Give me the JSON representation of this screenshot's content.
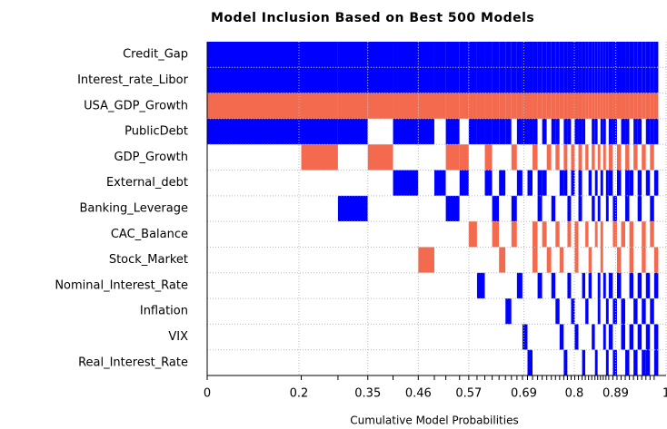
{
  "chart_data": {
    "type": "model-inclusion",
    "title": "Model Inclusion Based on Best  500  Models",
    "x_label": "Cumulative Model Probabilities",
    "categories": [
      "Credit_Gap",
      "Interest_rate_Libor",
      "USA_GDP_Growth",
      "PublicDebt",
      "GDP_Growth",
      "External_debt",
      "Banking_Leverage",
      "CAC_Balance",
      "Stock_Market",
      "Nominal_Interest_Rate",
      "Inflation",
      "VIX",
      "Real_Interest_Rate"
    ],
    "xlim": [
      0,
      1
    ],
    "xticks": [
      0,
      0.2,
      0.35,
      0.46,
      0.57,
      0.69,
      0.8,
      0.89,
      1
    ],
    "grid": true,
    "colors": {
      "1": "#0000ff",
      "-1": "#f46a4e",
      "0": "#ffffff"
    },
    "models": [
      {
        "prob": 0.205,
        "signs": [
          1,
          1,
          -1,
          1,
          0,
          0,
          0,
          0,
          0,
          0,
          0,
          0,
          0
        ]
      },
      {
        "prob": 0.08,
        "signs": [
          1,
          1,
          -1,
          1,
          -1,
          0,
          0,
          0,
          0,
          0,
          0,
          0,
          0
        ]
      },
      {
        "prob": 0.065,
        "signs": [
          1,
          1,
          -1,
          1,
          0,
          0,
          1,
          0,
          0,
          0,
          0,
          0,
          0
        ]
      },
      {
        "prob": 0.055,
        "signs": [
          1,
          1,
          -1,
          0,
          -1,
          0,
          0,
          0,
          0,
          0,
          0,
          0,
          0
        ]
      },
      {
        "prob": 0.055,
        "signs": [
          1,
          1,
          -1,
          1,
          0,
          1,
          0,
          0,
          0,
          0,
          0,
          0,
          0
        ]
      },
      {
        "prob": 0.035,
        "signs": [
          1,
          1,
          -1,
          1,
          0,
          0,
          0,
          0,
          -1,
          0,
          0,
          0,
          0
        ]
      },
      {
        "prob": 0.025,
        "signs": [
          1,
          1,
          -1,
          0,
          0,
          1,
          0,
          0,
          0,
          0,
          0,
          0,
          0
        ]
      },
      {
        "prob": 0.03,
        "signs": [
          1,
          1,
          -1,
          1,
          -1,
          0,
          1,
          0,
          0,
          0,
          0,
          0,
          0
        ]
      },
      {
        "prob": 0.02,
        "signs": [
          1,
          1,
          -1,
          0,
          -1,
          1,
          0,
          0,
          0,
          0,
          0,
          0,
          0
        ]
      },
      {
        "prob": 0.018,
        "signs": [
          1,
          1,
          -1,
          1,
          0,
          0,
          0,
          -1,
          0,
          0,
          0,
          0,
          0
        ]
      },
      {
        "prob": 0.017,
        "signs": [
          1,
          1,
          -1,
          1,
          0,
          0,
          0,
          0,
          0,
          1,
          0,
          0,
          0
        ]
      },
      {
        "prob": 0.016,
        "signs": [
          1,
          1,
          -1,
          1,
          -1,
          1,
          0,
          0,
          0,
          0,
          0,
          0,
          0
        ]
      },
      {
        "prob": 0.015,
        "signs": [
          1,
          1,
          -1,
          1,
          0,
          0,
          1,
          -1,
          0,
          0,
          0,
          0,
          0
        ]
      },
      {
        "prob": 0.014,
        "signs": [
          1,
          1,
          -1,
          1,
          0,
          1,
          0,
          0,
          -1,
          0,
          0,
          0,
          0
        ]
      },
      {
        "prob": 0.013,
        "signs": [
          1,
          1,
          -1,
          1,
          0,
          0,
          0,
          0,
          0,
          0,
          1,
          0,
          0
        ]
      },
      {
        "prob": 0.012,
        "signs": [
          1,
          1,
          -1,
          0,
          -1,
          0,
          1,
          -1,
          0,
          0,
          0,
          0,
          0
        ]
      },
      {
        "prob": 0.012,
        "signs": [
          1,
          1,
          -1,
          1,
          0,
          1,
          0,
          0,
          0,
          1,
          0,
          0,
          0
        ]
      },
      {
        "prob": 0.011,
        "signs": [
          1,
          1,
          -1,
          1,
          0,
          0,
          0,
          0,
          0,
          0,
          0,
          1,
          0
        ]
      },
      {
        "prob": 0.011,
        "signs": [
          1,
          1,
          -1,
          1,
          0,
          1,
          0,
          0,
          0,
          0,
          0,
          0,
          1
        ]
      },
      {
        "prob": 0.011,
        "signs": [
          1,
          1,
          -1,
          1,
          -1,
          0,
          0,
          -1,
          -1,
          0,
          0,
          0,
          0
        ]
      },
      {
        "prob": 0.01,
        "signs": [
          1,
          1,
          -1,
          0,
          0,
          1,
          1,
          0,
          0,
          1,
          0,
          0,
          0
        ]
      },
      {
        "prob": 0.01,
        "signs": [
          1,
          1,
          -1,
          1,
          0,
          1,
          0,
          -1,
          0,
          0,
          0,
          0,
          0
        ]
      },
      {
        "prob": 0.01,
        "signs": [
          1,
          1,
          -1,
          0,
          -1,
          0,
          0,
          0,
          -1,
          0,
          0,
          0,
          0
        ]
      },
      {
        "prob": 0.009,
        "signs": [
          1,
          1,
          -1,
          1,
          0,
          0,
          1,
          0,
          0,
          1,
          0,
          0,
          0
        ]
      },
      {
        "prob": 0.009,
        "signs": [
          1,
          1,
          -1,
          1,
          -1,
          0,
          0,
          -1,
          0,
          0,
          1,
          0,
          0
        ]
      },
      {
        "prob": 0.009,
        "signs": [
          1,
          1,
          -1,
          0,
          0,
          1,
          0,
          0,
          -1,
          0,
          0,
          1,
          0
        ]
      },
      {
        "prob": 0.008,
        "signs": [
          1,
          1,
          -1,
          1,
          -1,
          1,
          0,
          0,
          0,
          0,
          0,
          0,
          1
        ]
      },
      {
        "prob": 0.008,
        "signs": [
          1,
          1,
          -1,
          1,
          0,
          0,
          1,
          -1,
          0,
          1,
          0,
          0,
          0
        ]
      },
      {
        "prob": 0.008,
        "signs": [
          1,
          1,
          -1,
          0,
          -1,
          1,
          0,
          0,
          0,
          0,
          1,
          0,
          0
        ]
      },
      {
        "prob": 0.008,
        "signs": [
          1,
          1,
          -1,
          1,
          0,
          0,
          0,
          -1,
          -1,
          0,
          0,
          1,
          0
        ]
      },
      {
        "prob": 0.008,
        "signs": [
          1,
          1,
          -1,
          1,
          -1,
          1,
          1,
          0,
          0,
          0,
          0,
          0,
          0
        ]
      },
      {
        "prob": 0.007,
        "signs": [
          1,
          1,
          -1,
          1,
          0,
          0,
          0,
          0,
          0,
          1,
          0,
          0,
          1
        ]
      },
      {
        "prob": 0.007,
        "signs": [
          1,
          1,
          -1,
          0,
          -1,
          0,
          0,
          -1,
          0,
          0,
          1,
          0,
          0
        ]
      },
      {
        "prob": 0.007,
        "signs": [
          1,
          1,
          -1,
          0,
          0,
          1,
          0,
          0,
          -1,
          1,
          0,
          0,
          0
        ]
      },
      {
        "prob": 0.007,
        "signs": [
          1,
          1,
          -1,
          1,
          -1,
          0,
          1,
          0,
          0,
          0,
          0,
          1,
          0
        ]
      },
      {
        "prob": 0.006,
        "signs": [
          1,
          1,
          -1,
          1,
          0,
          1,
          0,
          -1,
          0,
          0,
          0,
          0,
          1
        ]
      },
      {
        "prob": 0.006,
        "signs": [
          1,
          1,
          -1,
          0,
          -1,
          0,
          1,
          0,
          0,
          1,
          1,
          0,
          0
        ]
      },
      {
        "prob": 0.006,
        "signs": [
          1,
          1,
          -1,
          1,
          0,
          1,
          0,
          -1,
          -1,
          0,
          0,
          0,
          0
        ]
      },
      {
        "prob": 0.006,
        "signs": [
          1,
          1,
          -1,
          1,
          -1,
          0,
          0,
          0,
          0,
          1,
          0,
          1,
          0
        ]
      },
      {
        "prob": 0.006,
        "signs": [
          1,
          1,
          -1,
          0,
          0,
          1,
          1,
          0,
          0,
          0,
          1,
          0,
          1
        ]
      },
      {
        "prob": 0.009,
        "signs": [
          1,
          1,
          -1,
          1,
          -1,
          1,
          0,
          0,
          0,
          1,
          0,
          1,
          0
        ]
      },
      {
        "prob": 0.009,
        "signs": [
          1,
          1,
          -1,
          1,
          0,
          0,
          1,
          -1,
          0,
          0,
          1,
          0,
          1
        ]
      },
      {
        "prob": 0.009,
        "signs": [
          1,
          1,
          -1,
          0,
          -1,
          1,
          0,
          0,
          -1,
          1,
          0,
          0,
          0
        ]
      },
      {
        "prob": 0.009,
        "signs": [
          1,
          1,
          -1,
          1,
          0,
          0,
          0,
          -1,
          0,
          0,
          1,
          1,
          0
        ]
      },
      {
        "prob": 0.009,
        "signs": [
          1,
          1,
          -1,
          1,
          -1,
          1,
          1,
          0,
          0,
          0,
          0,
          0,
          1
        ]
      },
      {
        "prob": 0.009,
        "signs": [
          1,
          1,
          -1,
          0,
          0,
          1,
          0,
          -1,
          -1,
          1,
          0,
          1,
          0
        ]
      },
      {
        "prob": 0.009,
        "signs": [
          1,
          1,
          -1,
          1,
          -1,
          0,
          0,
          0,
          0,
          0,
          1,
          0,
          1
        ]
      },
      {
        "prob": 0.009,
        "signs": [
          1,
          1,
          -1,
          1,
          0,
          1,
          1,
          0,
          0,
          1,
          0,
          1,
          0
        ]
      },
      {
        "prob": 0.009,
        "signs": [
          1,
          1,
          -1,
          0,
          -1,
          0,
          0,
          -1,
          -1,
          0,
          1,
          0,
          1
        ]
      },
      {
        "prob": 0.009,
        "signs": [
          1,
          1,
          -1,
          1,
          0,
          1,
          0,
          0,
          0,
          1,
          0,
          1,
          1
        ]
      },
      {
        "prob": 0.009,
        "signs": [
          1,
          1,
          -1,
          1,
          -1,
          0,
          1,
          -1,
          0,
          0,
          1,
          0,
          0
        ]
      },
      {
        "prob": 0.009,
        "signs": [
          1,
          1,
          -1,
          1,
          0,
          1,
          0,
          0,
          -1,
          1,
          0,
          1,
          1
        ]
      }
    ]
  }
}
